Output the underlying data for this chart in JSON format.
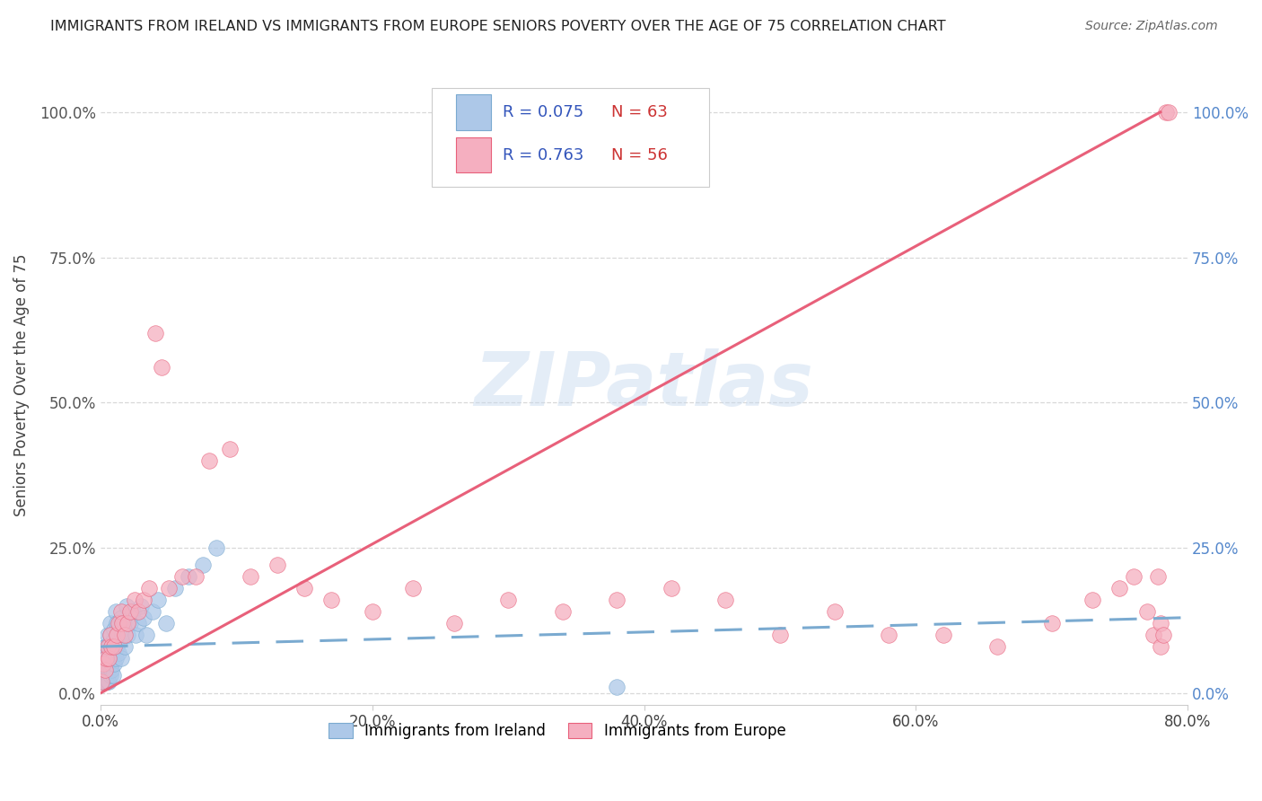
{
  "title": "IMMIGRANTS FROM IRELAND VS IMMIGRANTS FROM EUROPE SENIORS POVERTY OVER THE AGE OF 75 CORRELATION CHART",
  "source": "Source: ZipAtlas.com",
  "ylabel": "Seniors Poverty Over the Age of 75",
  "xlim": [
    0,
    0.8
  ],
  "ylim": [
    -0.02,
    1.08
  ],
  "ytick_labels": [
    "0.0%",
    "25.0%",
    "50.0%",
    "75.0%",
    "100.0%"
  ],
  "ytick_vals": [
    0.0,
    0.25,
    0.5,
    0.75,
    1.0
  ],
  "xtick_labels": [
    "0.0%",
    "20.0%",
    "40.0%",
    "60.0%",
    "80.0%"
  ],
  "xtick_vals": [
    0.0,
    0.2,
    0.4,
    0.6,
    0.8
  ],
  "legend_labels": [
    "Immigrants from Ireland",
    "Immigrants from Europe"
  ],
  "ireland_R": "R = 0.075",
  "ireland_N": "N = 63",
  "europe_R": "R = 0.763",
  "europe_N": "N = 56",
  "ireland_color": "#adc8e8",
  "europe_color": "#f5afc0",
  "ireland_line_color": "#7aaad0",
  "europe_line_color": "#e8607a",
  "watermark": "ZIPatlas",
  "background_color": "#ffffff",
  "grid_color": "#d8d8d8",
  "ireland_scatter_x": [
    0.001,
    0.001,
    0.002,
    0.002,
    0.002,
    0.003,
    0.003,
    0.003,
    0.004,
    0.004,
    0.004,
    0.004,
    0.005,
    0.005,
    0.005,
    0.005,
    0.005,
    0.006,
    0.006,
    0.006,
    0.006,
    0.007,
    0.007,
    0.007,
    0.007,
    0.008,
    0.008,
    0.008,
    0.009,
    0.009,
    0.009,
    0.01,
    0.01,
    0.01,
    0.011,
    0.011,
    0.012,
    0.012,
    0.013,
    0.013,
    0.014,
    0.015,
    0.015,
    0.016,
    0.017,
    0.018,
    0.019,
    0.02,
    0.022,
    0.024,
    0.026,
    0.028,
    0.03,
    0.032,
    0.034,
    0.038,
    0.042,
    0.048,
    0.055,
    0.065,
    0.075,
    0.085,
    0.38
  ],
  "ireland_scatter_y": [
    0.02,
    0.04,
    0.05,
    0.02,
    0.07,
    0.03,
    0.05,
    0.08,
    0.04,
    0.06,
    0.02,
    0.08,
    0.03,
    0.05,
    0.07,
    0.02,
    0.1,
    0.04,
    0.06,
    0.08,
    0.02,
    0.03,
    0.07,
    0.1,
    0.12,
    0.04,
    0.08,
    0.05,
    0.06,
    0.03,
    0.09,
    0.05,
    0.08,
    0.11,
    0.06,
    0.14,
    0.08,
    0.12,
    0.07,
    0.1,
    0.09,
    0.06,
    0.13,
    0.1,
    0.12,
    0.08,
    0.15,
    0.1,
    0.12,
    0.14,
    0.1,
    0.12,
    0.15,
    0.13,
    0.1,
    0.14,
    0.16,
    0.12,
    0.18,
    0.2,
    0.22,
    0.25,
    0.01
  ],
  "europe_scatter_x": [
    0.001,
    0.002,
    0.003,
    0.004,
    0.005,
    0.006,
    0.007,
    0.008,
    0.01,
    0.012,
    0.013,
    0.015,
    0.016,
    0.018,
    0.02,
    0.022,
    0.025,
    0.028,
    0.032,
    0.036,
    0.04,
    0.045,
    0.05,
    0.06,
    0.07,
    0.08,
    0.095,
    0.11,
    0.13,
    0.15,
    0.17,
    0.2,
    0.23,
    0.26,
    0.3,
    0.34,
    0.38,
    0.42,
    0.46,
    0.5,
    0.54,
    0.58,
    0.62,
    0.66,
    0.7,
    0.73,
    0.75,
    0.76,
    0.77,
    0.775,
    0.778,
    0.78,
    0.78,
    0.782,
    0.784,
    0.786
  ],
  "europe_scatter_y": [
    0.02,
    0.05,
    0.04,
    0.06,
    0.08,
    0.06,
    0.1,
    0.08,
    0.08,
    0.1,
    0.12,
    0.14,
    0.12,
    0.1,
    0.12,
    0.14,
    0.16,
    0.14,
    0.16,
    0.18,
    0.62,
    0.56,
    0.18,
    0.2,
    0.2,
    0.4,
    0.42,
    0.2,
    0.22,
    0.18,
    0.16,
    0.14,
    0.18,
    0.12,
    0.16,
    0.14,
    0.16,
    0.18,
    0.16,
    0.1,
    0.14,
    0.1,
    0.1,
    0.08,
    0.12,
    0.16,
    0.18,
    0.2,
    0.14,
    0.1,
    0.2,
    0.12,
    0.08,
    0.1,
    1.0,
    1.0
  ],
  "ireland_trend_x": [
    0.0,
    0.8
  ],
  "ireland_trend_y": [
    0.08,
    0.13
  ],
  "europe_trend_x": [
    0.0,
    0.78
  ],
  "europe_trend_y": [
    0.0,
    1.0
  ]
}
